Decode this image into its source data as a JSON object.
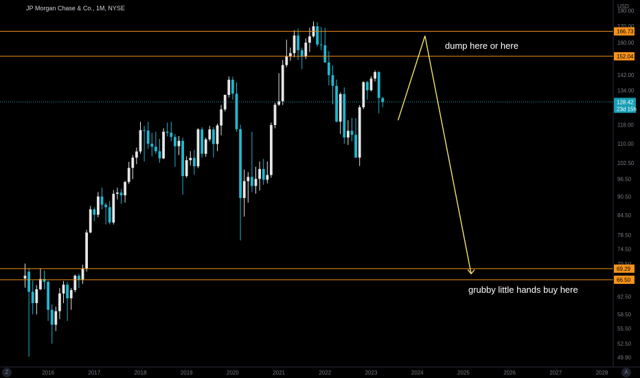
{
  "header": {
    "title": "JP Morgan Chase & Co., 1M, NYSE"
  },
  "icons": {
    "zoom": "Z",
    "settings": "A"
  },
  "colors": {
    "background": "#000000",
    "up_candle": "#e6e6e6",
    "down_candle": "#1fb8d0",
    "level_line": "#f7931a",
    "projection": "#f5e66b",
    "text": "#d1d4dc",
    "axis_text": "#787b86"
  },
  "chart_data": {
    "type": "candlestick",
    "title": "JP Morgan Chase & Co., 1M, NYSE",
    "currency_label": "USD",
    "scale": "log",
    "ylim": [
      48.5,
      183
    ],
    "x_ticks": [
      "2016",
      "2017",
      "2018",
      "2019",
      "2020",
      "2021",
      "2022",
      "2023",
      "2024",
      "2025",
      "2026",
      "2027",
      "2028"
    ],
    "y_ticks": [
      "180.00",
      "170.00",
      "160.00",
      "152.00",
      "142.00",
      "134.00",
      "126.00",
      "118.00",
      "110.00",
      "102.50",
      "96.50",
      "90.50",
      "84.50",
      "78.50",
      "74.50",
      "70.50",
      "66.50",
      "62.50",
      "58.50",
      "55.50",
      "52.50",
      "49.90"
    ],
    "candles": [
      {
        "t": "2015-07",
        "o": 66.8,
        "h": 70.6,
        "l": 64.6,
        "c": 67.5
      },
      {
        "t": "2015-08",
        "o": 68.5,
        "h": 69.5,
        "l": 50.0,
        "c": 63.6
      },
      {
        "t": "2015-09",
        "o": 63.6,
        "h": 66.3,
        "l": 58.5,
        "c": 61.0
      },
      {
        "t": "2015-10",
        "o": 61.0,
        "h": 65.2,
        "l": 58.5,
        "c": 64.2
      },
      {
        "t": "2015-11",
        "o": 64.2,
        "h": 69.4,
        "l": 64.0,
        "c": 66.7
      },
      {
        "t": "2015-12",
        "o": 66.7,
        "h": 68.8,
        "l": 64.2,
        "c": 66.0
      },
      {
        "t": "2016-01",
        "o": 66.0,
        "h": 66.3,
        "l": 57.1,
        "c": 59.5
      },
      {
        "t": "2016-02",
        "o": 59.5,
        "h": 60.7,
        "l": 52.5,
        "c": 56.3
      },
      {
        "t": "2016-03",
        "o": 56.3,
        "h": 60.2,
        "l": 55.0,
        "c": 59.2
      },
      {
        "t": "2016-04",
        "o": 59.2,
        "h": 64.5,
        "l": 57.5,
        "c": 63.2
      },
      {
        "t": "2016-05",
        "o": 63.2,
        "h": 66.2,
        "l": 61.0,
        "c": 65.3
      },
      {
        "t": "2016-06",
        "o": 65.3,
        "h": 66.0,
        "l": 57.1,
        "c": 62.1
      },
      {
        "t": "2016-07",
        "o": 62.1,
        "h": 64.5,
        "l": 59.5,
        "c": 64.0
      },
      {
        "t": "2016-08",
        "o": 64.0,
        "h": 67.8,
        "l": 63.5,
        "c": 67.5
      },
      {
        "t": "2016-09",
        "o": 67.5,
        "h": 68.0,
        "l": 64.5,
        "c": 66.6
      },
      {
        "t": "2016-10",
        "o": 66.6,
        "h": 70.3,
        "l": 65.5,
        "c": 69.3
      },
      {
        "t": "2016-11",
        "o": 69.3,
        "h": 80.0,
        "l": 68.5,
        "c": 79.2
      },
      {
        "t": "2016-12",
        "o": 79.2,
        "h": 87.4,
        "l": 79.0,
        "c": 86.3
      },
      {
        "t": "2017-01",
        "o": 86.3,
        "h": 87.0,
        "l": 82.6,
        "c": 84.6
      },
      {
        "t": "2017-02",
        "o": 84.6,
        "h": 92.0,
        "l": 83.8,
        "c": 90.5
      },
      {
        "t": "2017-03",
        "o": 90.5,
        "h": 93.5,
        "l": 86.3,
        "c": 87.8
      },
      {
        "t": "2017-04",
        "o": 87.8,
        "h": 88.4,
        "l": 81.6,
        "c": 87.0
      },
      {
        "t": "2017-05",
        "o": 87.0,
        "h": 89.0,
        "l": 81.6,
        "c": 82.2
      },
      {
        "t": "2017-06",
        "o": 82.2,
        "h": 92.7,
        "l": 81.6,
        "c": 91.4
      },
      {
        "t": "2017-07",
        "o": 91.4,
        "h": 93.5,
        "l": 89.5,
        "c": 91.8
      },
      {
        "t": "2017-08",
        "o": 91.8,
        "h": 93.0,
        "l": 88.1,
        "c": 90.9
      },
      {
        "t": "2017-09",
        "o": 90.9,
        "h": 95.9,
        "l": 88.5,
        "c": 95.5
      },
      {
        "t": "2017-10",
        "o": 95.5,
        "h": 102.9,
        "l": 94.8,
        "c": 100.6
      },
      {
        "t": "2017-11",
        "o": 100.6,
        "h": 105.5,
        "l": 96.5,
        "c": 104.5
      },
      {
        "t": "2017-12",
        "o": 104.5,
        "h": 108.5,
        "l": 102.0,
        "c": 106.9
      },
      {
        "t": "2018-01",
        "o": 106.9,
        "h": 119.3,
        "l": 106.0,
        "c": 115.7
      },
      {
        "t": "2018-02",
        "o": 115.7,
        "h": 117.5,
        "l": 103.0,
        "c": 115.5
      },
      {
        "t": "2018-03",
        "o": 115.5,
        "h": 119.3,
        "l": 108.0,
        "c": 110.0
      },
      {
        "t": "2018-04",
        "o": 110.0,
        "h": 114.5,
        "l": 105.0,
        "c": 108.8
      },
      {
        "t": "2018-05",
        "o": 108.8,
        "h": 115.0,
        "l": 106.0,
        "c": 107.0
      },
      {
        "t": "2018-06",
        "o": 107.0,
        "h": 112.0,
        "l": 102.5,
        "c": 104.2
      },
      {
        "t": "2018-07",
        "o": 104.2,
        "h": 116.5,
        "l": 103.9,
        "c": 115.0
      },
      {
        "t": "2018-08",
        "o": 115.0,
        "h": 119.0,
        "l": 113.0,
        "c": 114.6
      },
      {
        "t": "2018-09",
        "o": 114.6,
        "h": 119.3,
        "l": 111.0,
        "c": 112.8
      },
      {
        "t": "2018-10",
        "o": 112.8,
        "h": 114.0,
        "l": 101.0,
        "c": 109.0
      },
      {
        "t": "2018-11",
        "o": 109.0,
        "h": 113.2,
        "l": 105.5,
        "c": 111.2
      },
      {
        "t": "2018-12",
        "o": 111.2,
        "h": 112.5,
        "l": 91.1,
        "c": 97.6
      },
      {
        "t": "2019-01",
        "o": 97.6,
        "h": 105.0,
        "l": 97.0,
        "c": 103.5
      },
      {
        "t": "2019-02",
        "o": 103.5,
        "h": 107.0,
        "l": 101.5,
        "c": 104.4
      },
      {
        "t": "2019-03",
        "o": 104.4,
        "h": 107.5,
        "l": 98.1,
        "c": 101.2
      },
      {
        "t": "2019-04",
        "o": 101.2,
        "h": 116.5,
        "l": 100.5,
        "c": 116.0
      },
      {
        "t": "2019-05",
        "o": 116.0,
        "h": 117.0,
        "l": 104.5,
        "c": 106.0
      },
      {
        "t": "2019-06",
        "o": 106.0,
        "h": 112.5,
        "l": 104.8,
        "c": 111.8
      },
      {
        "t": "2019-07",
        "o": 111.8,
        "h": 117.5,
        "l": 111.0,
        "c": 116.0
      },
      {
        "t": "2019-08",
        "o": 116.0,
        "h": 117.0,
        "l": 104.5,
        "c": 109.9
      },
      {
        "t": "2019-09",
        "o": 109.9,
        "h": 118.5,
        "l": 107.0,
        "c": 117.7
      },
      {
        "t": "2019-10",
        "o": 117.7,
        "h": 127.0,
        "l": 113.5,
        "c": 124.9
      },
      {
        "t": "2019-11",
        "o": 124.9,
        "h": 132.0,
        "l": 124.0,
        "c": 131.8
      },
      {
        "t": "2019-12",
        "o": 131.8,
        "h": 141.1,
        "l": 130.5,
        "c": 139.4
      },
      {
        "t": "2020-01",
        "o": 139.4,
        "h": 141.0,
        "l": 129.5,
        "c": 132.4
      },
      {
        "t": "2020-02",
        "o": 132.4,
        "h": 138.0,
        "l": 115.0,
        "c": 116.1
      },
      {
        "t": "2020-03",
        "o": 116.1,
        "h": 118.0,
        "l": 76.9,
        "c": 90.0
      },
      {
        "t": "2020-04",
        "o": 90.0,
        "h": 100.0,
        "l": 84.0,
        "c": 95.8
      },
      {
        "t": "2020-05",
        "o": 95.8,
        "h": 99.0,
        "l": 88.5,
        "c": 97.3
      },
      {
        "t": "2020-06",
        "o": 97.3,
        "h": 115.0,
        "l": 92.0,
        "c": 94.1
      },
      {
        "t": "2020-07",
        "o": 94.1,
        "h": 101.0,
        "l": 91.5,
        "c": 96.6
      },
      {
        "t": "2020-08",
        "o": 96.6,
        "h": 103.0,
        "l": 92.5,
        "c": 100.2
      },
      {
        "t": "2020-09",
        "o": 100.2,
        "h": 104.0,
        "l": 94.5,
        "c": 96.3
      },
      {
        "t": "2020-10",
        "o": 96.3,
        "h": 103.0,
        "l": 95.0,
        "c": 98.0
      },
      {
        "t": "2020-11",
        "o": 98.0,
        "h": 119.0,
        "l": 97.0,
        "c": 117.9
      },
      {
        "t": "2020-12",
        "o": 117.9,
        "h": 128.0,
        "l": 116.5,
        "c": 127.1
      },
      {
        "t": "2021-01",
        "o": 127.1,
        "h": 142.8,
        "l": 126.5,
        "c": 128.7
      },
      {
        "t": "2021-02",
        "o": 128.7,
        "h": 150.0,
        "l": 127.0,
        "c": 147.2
      },
      {
        "t": "2021-03",
        "o": 147.2,
        "h": 161.7,
        "l": 146.0,
        "c": 152.2
      },
      {
        "t": "2021-04",
        "o": 152.2,
        "h": 157.0,
        "l": 149.5,
        "c": 153.8
      },
      {
        "t": "2021-05",
        "o": 153.8,
        "h": 167.4,
        "l": 151.5,
        "c": 164.2
      },
      {
        "t": "2021-06",
        "o": 164.2,
        "h": 168.5,
        "l": 150.0,
        "c": 155.5
      },
      {
        "t": "2021-07",
        "o": 155.5,
        "h": 157.0,
        "l": 145.0,
        "c": 151.8
      },
      {
        "t": "2021-08",
        "o": 151.8,
        "h": 162.5,
        "l": 150.5,
        "c": 159.9
      },
      {
        "t": "2021-09",
        "o": 159.9,
        "h": 169.0,
        "l": 154.5,
        "c": 163.7
      },
      {
        "t": "2021-10",
        "o": 163.7,
        "h": 172.96,
        "l": 163.0,
        "c": 169.9
      },
      {
        "t": "2021-11",
        "o": 169.9,
        "h": 172.5,
        "l": 157.5,
        "c": 158.8
      },
      {
        "t": "2021-12",
        "o": 158.8,
        "h": 169.5,
        "l": 155.5,
        "c": 158.4
      },
      {
        "t": "2022-01",
        "o": 158.4,
        "h": 168.9,
        "l": 148.5,
        "c": 148.6
      },
      {
        "t": "2022-02",
        "o": 148.6,
        "h": 155.0,
        "l": 136.5,
        "c": 141.8
      },
      {
        "t": "2022-03",
        "o": 141.8,
        "h": 147.0,
        "l": 127.3,
        "c": 136.3
      },
      {
        "t": "2022-04",
        "o": 136.3,
        "h": 139.5,
        "l": 119.0,
        "c": 119.4
      },
      {
        "t": "2022-05",
        "o": 119.4,
        "h": 133.0,
        "l": 114.0,
        "c": 132.2
      },
      {
        "t": "2022-06",
        "o": 132.2,
        "h": 135.5,
        "l": 110.0,
        "c": 112.6
      },
      {
        "t": "2022-07",
        "o": 112.6,
        "h": 120.0,
        "l": 109.5,
        "c": 115.4
      },
      {
        "t": "2022-08",
        "o": 115.4,
        "h": 121.0,
        "l": 111.0,
        "c": 113.7
      },
      {
        "t": "2022-09",
        "o": 113.7,
        "h": 121.0,
        "l": 104.4,
        "c": 104.5
      },
      {
        "t": "2022-10",
        "o": 104.5,
        "h": 126.9,
        "l": 101.3,
        "c": 125.9
      },
      {
        "t": "2022-11",
        "o": 125.9,
        "h": 138.5,
        "l": 125.0,
        "c": 138.2
      },
      {
        "t": "2022-12",
        "o": 138.2,
        "h": 138.7,
        "l": 129.5,
        "c": 134.1
      },
      {
        "t": "2023-01",
        "o": 134.1,
        "h": 141.2,
        "l": 133.5,
        "c": 140.0
      },
      {
        "t": "2023-02",
        "o": 140.0,
        "h": 144.3,
        "l": 138.5,
        "c": 143.4
      },
      {
        "t": "2023-03",
        "o": 143.4,
        "h": 144.0,
        "l": 123.1,
        "c": 130.3
      },
      {
        "t": "2023-04",
        "o": 130.3,
        "h": 130.8,
        "l": 126.0,
        "c": 128.42
      }
    ],
    "horizontal_levels": [
      {
        "label": "166.73",
        "value": 166.73
      },
      {
        "label": "152.04",
        "value": 152.04
      },
      {
        "label": "69.29",
        "value": 69.29
      },
      {
        "label": "66.50",
        "value": 66.5
      }
    ],
    "last_price": {
      "value": 128.42,
      "label": "128.42",
      "countdown": "23d 15h"
    },
    "annotations": [
      {
        "text": "dump here or here"
      },
      {
        "text": "grubby little hands buy here"
      }
    ],
    "projection_path": [
      {
        "t": "2023-08",
        "value": 120.0
      },
      {
        "t": "2024-03",
        "value": 164.0
      },
      {
        "t": "2025-03",
        "value": 68.0
      }
    ]
  }
}
